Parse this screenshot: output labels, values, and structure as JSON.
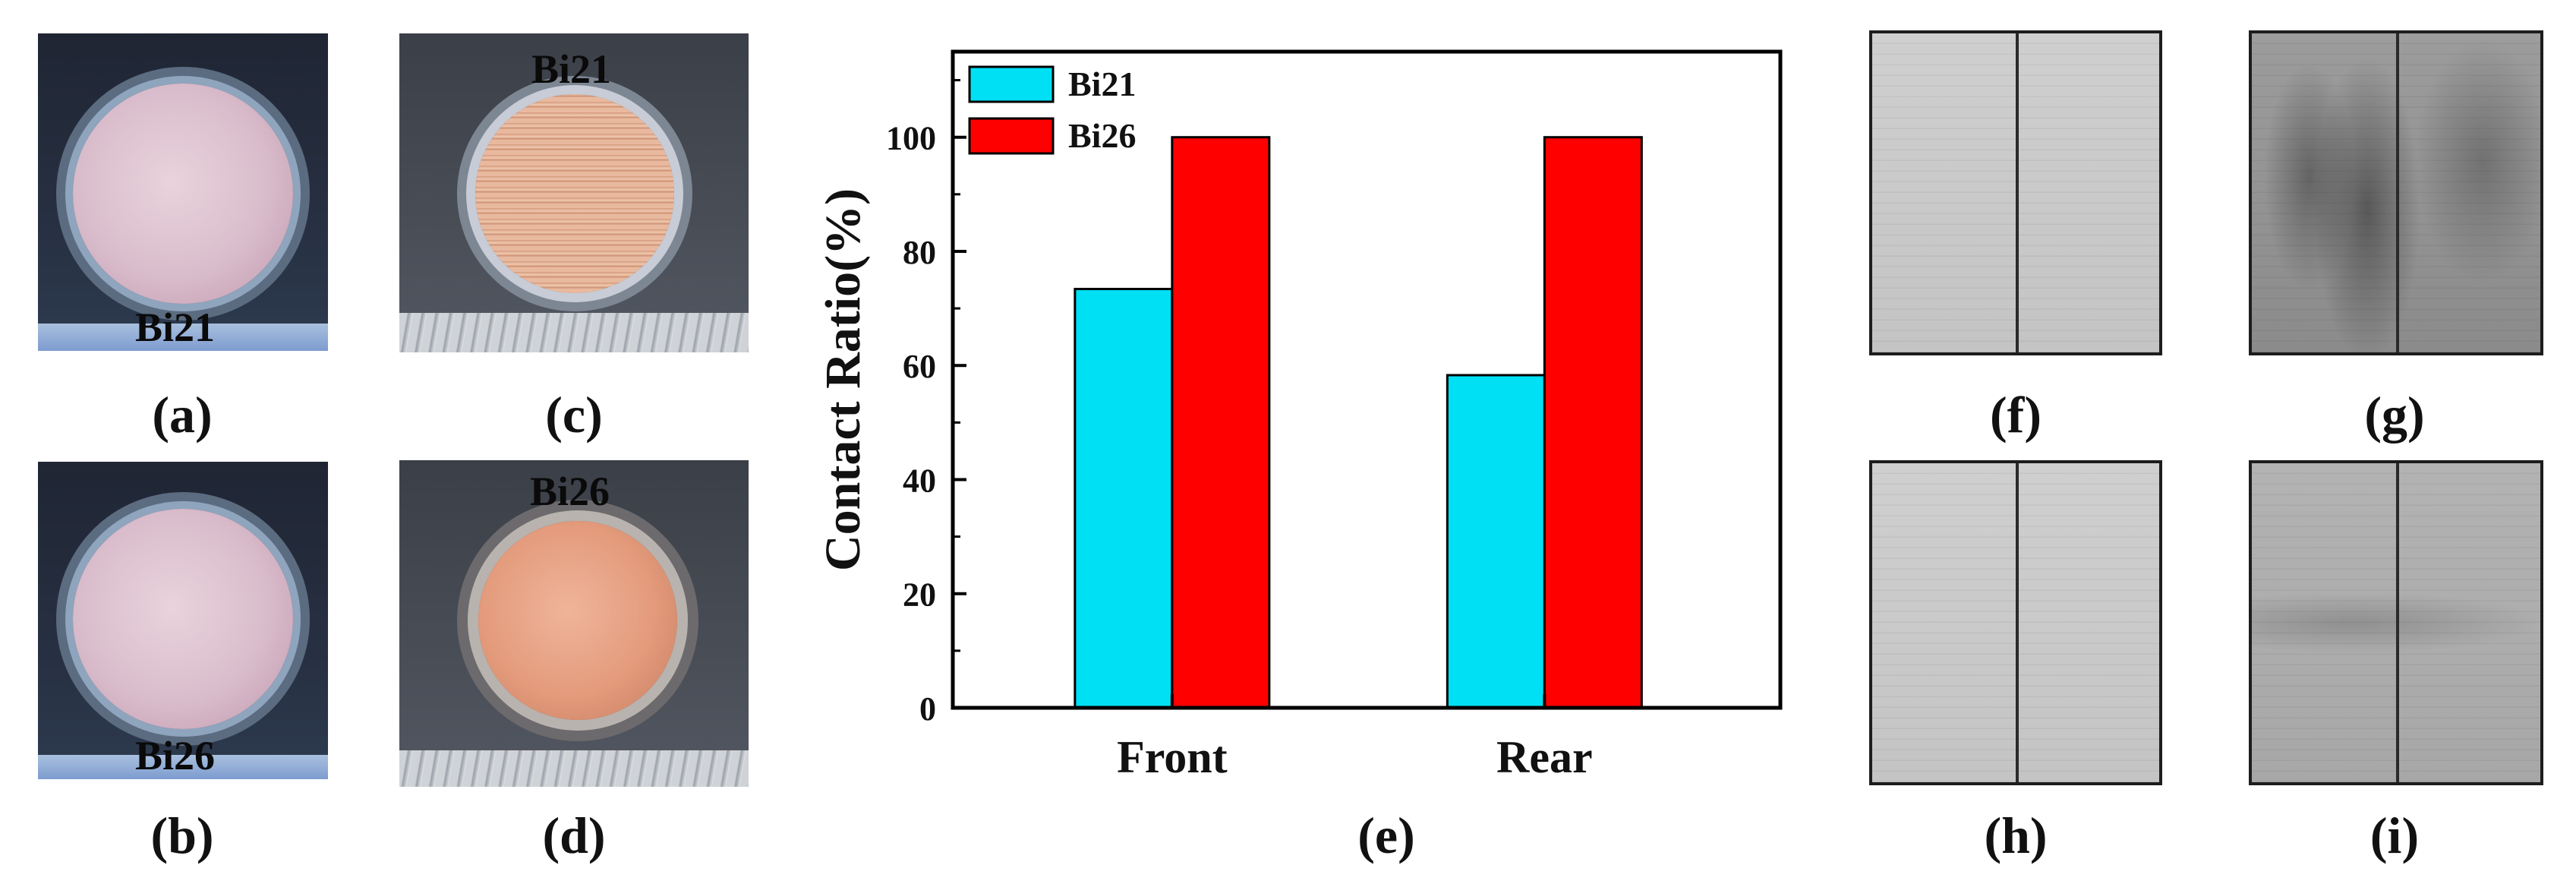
{
  "panel_captions": {
    "a": "(a)",
    "b": "(b)",
    "c": "(c)",
    "d": "(d)",
    "e": "(e)",
    "f": "(f)",
    "g": "(g)",
    "h": "(h)",
    "i": "(i)"
  },
  "micrograph_labels": {
    "a": "Bi21",
    "b": "Bi26",
    "c": "Bi21",
    "d": "Bi26"
  },
  "chart_data": {
    "type": "bar",
    "categories": [
      "Front",
      "Rear"
    ],
    "series": [
      {
        "name": "Bi21",
        "values": [
          73.4,
          58.3
        ],
        "color": "#00e0f5"
      },
      {
        "name": "Bi26",
        "values": [
          100,
          100
        ],
        "color": "#ff0000"
      }
    ],
    "ylabel": "Contact Ratio(%)",
    "xlabel": "",
    "ylim": [
      0,
      115
    ],
    "yticks": [
      0,
      20,
      40,
      60,
      80,
      100
    ],
    "legend_position": "top-left",
    "grid": false
  },
  "colors": {
    "axis": "#000000",
    "bar_edge": "#000000"
  }
}
